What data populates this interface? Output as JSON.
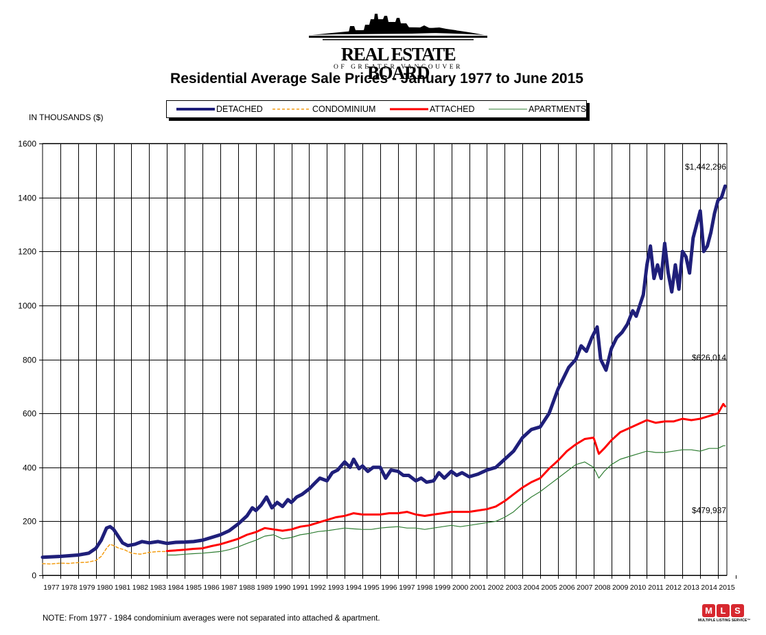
{
  "header": {
    "logo_name": "REAL ESTATE BOARD",
    "logo_subtitle": "OF GREATER VANCOUVER",
    "title": "Residential Average Sale Prices  -  January 1977 to June 2015"
  },
  "footer": {
    "note": "NOTE:  From 1977 - 1984 condominium averages were not separated into attached & apartment.",
    "mls_letters": [
      "M",
      "L",
      "S"
    ],
    "mls_sub": "MULTIPLE LISTING SERVICE™"
  },
  "chart_data": {
    "type": "line",
    "title": "Residential Average Sale Prices  -  January 1977 to June 2015",
    "ylabel": "IN THOUSANDS ($)",
    "xlabel": "",
    "ylim": [
      0,
      1600
    ],
    "xlim": [
      1977.0,
      2015.5
    ],
    "yticks": [
      0,
      200,
      400,
      600,
      800,
      1000,
      1200,
      1400,
      1600
    ],
    "xtick_labels": [
      "1977",
      "1978",
      "1979",
      "1980",
      "1981",
      "1982",
      "1983",
      "1984",
      "1985",
      "1986",
      "1987",
      "1988",
      "1989",
      "1990",
      "1991",
      "1992",
      "1993",
      "1994",
      "1995",
      "1996",
      "1997",
      "1998",
      "1999",
      "2000",
      "2001",
      "2002",
      "2003",
      "2004",
      "2005",
      "2006",
      "2007",
      "2008",
      "2009",
      "2010",
      "2011",
      "2012",
      "2013",
      "2014",
      "2015"
    ],
    "grid": true,
    "legend_position": "top-center",
    "series": [
      {
        "name": "DETACHED",
        "color": "#1f1f7a",
        "style": "thick-solid",
        "x": [
          1977.0,
          1978.0,
          1979.0,
          1979.6,
          1980.0,
          1980.3,
          1980.6,
          1980.8,
          1981.0,
          1981.3,
          1981.5,
          1981.8,
          1982.2,
          1982.6,
          1983.0,
          1983.5,
          1984.0,
          1984.5,
          1985.0,
          1985.5,
          1986.0,
          1986.5,
          1987.0,
          1987.5,
          1988.0,
          1988.5,
          1988.8,
          1989.0,
          1989.3,
          1989.6,
          1989.9,
          1990.2,
          1990.5,
          1990.8,
          1991.0,
          1991.3,
          1991.6,
          1992.0,
          1992.3,
          1992.6,
          1993.0,
          1993.3,
          1993.6,
          1994.0,
          1994.3,
          1994.5,
          1994.8,
          1995.0,
          1995.3,
          1995.6,
          1996.0,
          1996.3,
          1996.6,
          1997.0,
          1997.3,
          1997.6,
          1998.0,
          1998.3,
          1998.6,
          1999.0,
          1999.3,
          1999.6,
          2000.0,
          2000.3,
          2000.6,
          2001.0,
          2001.5,
          2002.0,
          2002.5,
          2003.0,
          2003.5,
          2004.0,
          2004.5,
          2005.0,
          2005.5,
          2006.0,
          2006.3,
          2006.6,
          2007.0,
          2007.3,
          2007.6,
          2007.9,
          2008.2,
          2008.4,
          2008.7,
          2009.0,
          2009.3,
          2009.6,
          2009.9,
          2010.2,
          2010.4,
          2010.6,
          2010.8,
          2011.0,
          2011.2,
          2011.4,
          2011.6,
          2011.8,
          2012.0,
          2012.2,
          2012.4,
          2012.6,
          2012.8,
          2013.0,
          2013.2,
          2013.4,
          2013.6,
          2013.8,
          2014.0,
          2014.2,
          2014.4,
          2014.6,
          2014.8,
          2015.0,
          2015.2,
          2015.4
        ],
        "y": [
          67,
          70,
          75,
          82,
          100,
          130,
          175,
          180,
          170,
          140,
          120,
          110,
          115,
          125,
          120,
          125,
          118,
          122,
          123,
          125,
          130,
          140,
          150,
          165,
          190,
          220,
          250,
          240,
          260,
          290,
          250,
          270,
          255,
          280,
          270,
          290,
          300,
          320,
          340,
          360,
          350,
          380,
          390,
          420,
          400,
          430,
          395,
          405,
          385,
          400,
          400,
          360,
          390,
          385,
          370,
          370,
          350,
          360,
          345,
          350,
          380,
          360,
          385,
          370,
          380,
          365,
          375,
          390,
          400,
          430,
          460,
          510,
          540,
          550,
          600,
          690,
          730,
          770,
          800,
          850,
          830,
          880,
          920,
          800,
          760,
          840,
          880,
          900,
          930,
          980,
          960,
          1000,
          1040,
          1150,
          1220,
          1100,
          1150,
          1100,
          1230,
          1120,
          1050,
          1150,
          1060,
          1200,
          1180,
          1120,
          1250,
          1300,
          1350,
          1200,
          1220,
          1270,
          1340,
          1390,
          1400,
          1442
        ]
      },
      {
        "name": "CONDOMINIUM",
        "color": "#f39c12",
        "style": "dashed",
        "x": [
          1977.0,
          1977.5,
          1978.0,
          1978.5,
          1979.0,
          1979.5,
          1980.0,
          1980.3,
          1980.6,
          1980.8,
          1981.0,
          1981.3,
          1981.6,
          1982.0,
          1982.5,
          1983.0,
          1983.5,
          1984.0
        ],
        "y": [
          43,
          42,
          45,
          44,
          47,
          48,
          55,
          70,
          100,
          115,
          110,
          100,
          95,
          82,
          78,
          85,
          88,
          88
        ]
      },
      {
        "name": "ATTACHED",
        "color": "#ff0000",
        "style": "solid",
        "x": [
          1984.0,
          1984.5,
          1985.0,
          1985.5,
          1986.0,
          1986.5,
          1987.0,
          1987.5,
          1988.0,
          1988.5,
          1989.0,
          1989.5,
          1990.0,
          1990.5,
          1991.0,
          1991.5,
          1992.0,
          1992.5,
          1993.0,
          1993.5,
          1994.0,
          1994.5,
          1995.0,
          1995.5,
          1996.0,
          1996.5,
          1997.0,
          1997.5,
          1998.0,
          1998.5,
          1999.0,
          1999.5,
          2000.0,
          2000.5,
          2001.0,
          2001.5,
          2002.0,
          2002.5,
          2003.0,
          2003.5,
          2004.0,
          2004.5,
          2005.0,
          2005.5,
          2006.0,
          2006.5,
          2007.0,
          2007.5,
          2008.0,
          2008.3,
          2008.6,
          2009.0,
          2009.5,
          2010.0,
          2010.5,
          2011.0,
          2011.5,
          2012.0,
          2012.5,
          2013.0,
          2013.5,
          2014.0,
          2014.5,
          2015.0,
          2015.3,
          2015.4
        ],
        "y": [
          90,
          92,
          95,
          98,
          100,
          108,
          115,
          125,
          135,
          150,
          160,
          175,
          170,
          165,
          170,
          180,
          185,
          195,
          205,
          215,
          220,
          230,
          225,
          225,
          225,
          230,
          230,
          235,
          225,
          220,
          225,
          230,
          235,
          235,
          235,
          240,
          245,
          255,
          275,
          300,
          325,
          345,
          360,
          395,
          425,
          460,
          485,
          505,
          510,
          450,
          470,
          500,
          530,
          545,
          560,
          575,
          565,
          570,
          570,
          580,
          575,
          580,
          590,
          600,
          635,
          626
        ]
      },
      {
        "name": "APARTMENTS",
        "color": "#2e7d32",
        "style": "thin-solid",
        "x": [
          1984.0,
          1984.5,
          1985.0,
          1985.5,
          1986.0,
          1986.5,
          1987.0,
          1987.5,
          1988.0,
          1988.5,
          1989.0,
          1989.5,
          1990.0,
          1990.5,
          1991.0,
          1991.5,
          1992.0,
          1992.5,
          1993.0,
          1993.5,
          1994.0,
          1994.5,
          1995.0,
          1995.5,
          1996.0,
          1996.5,
          1997.0,
          1997.5,
          1998.0,
          1998.5,
          1999.0,
          1999.5,
          2000.0,
          2000.5,
          2001.0,
          2001.5,
          2002.0,
          2002.5,
          2003.0,
          2003.5,
          2004.0,
          2004.5,
          2005.0,
          2005.5,
          2006.0,
          2006.5,
          2007.0,
          2007.5,
          2008.0,
          2008.3,
          2008.6,
          2009.0,
          2009.5,
          2010.0,
          2010.5,
          2011.0,
          2011.5,
          2012.0,
          2012.5,
          2013.0,
          2013.5,
          2014.0,
          2014.5,
          2015.0,
          2015.3,
          2015.4
        ],
        "y": [
          75,
          75,
          78,
          80,
          82,
          85,
          88,
          95,
          105,
          118,
          130,
          145,
          150,
          135,
          140,
          150,
          155,
          162,
          165,
          170,
          175,
          172,
          170,
          170,
          175,
          178,
          180,
          175,
          175,
          170,
          175,
          180,
          185,
          180,
          185,
          190,
          195,
          200,
          215,
          235,
          265,
          290,
          310,
          335,
          360,
          385,
          410,
          420,
          400,
          360,
          385,
          410,
          430,
          440,
          450,
          460,
          455,
          455,
          460,
          465,
          465,
          460,
          470,
          470,
          480,
          480
        ]
      }
    ],
    "annotations": [
      {
        "text": "$1,442,296",
        "series": "DETACHED",
        "x": 2015.4,
        "y": 1442
      },
      {
        "text": "$626,014",
        "series": "ATTACHED",
        "x": 2015.4,
        "y": 626
      },
      {
        "text": "$479,937",
        "series": "APARTMENTS",
        "x": 2015.4,
        "y": 480
      }
    ]
  }
}
